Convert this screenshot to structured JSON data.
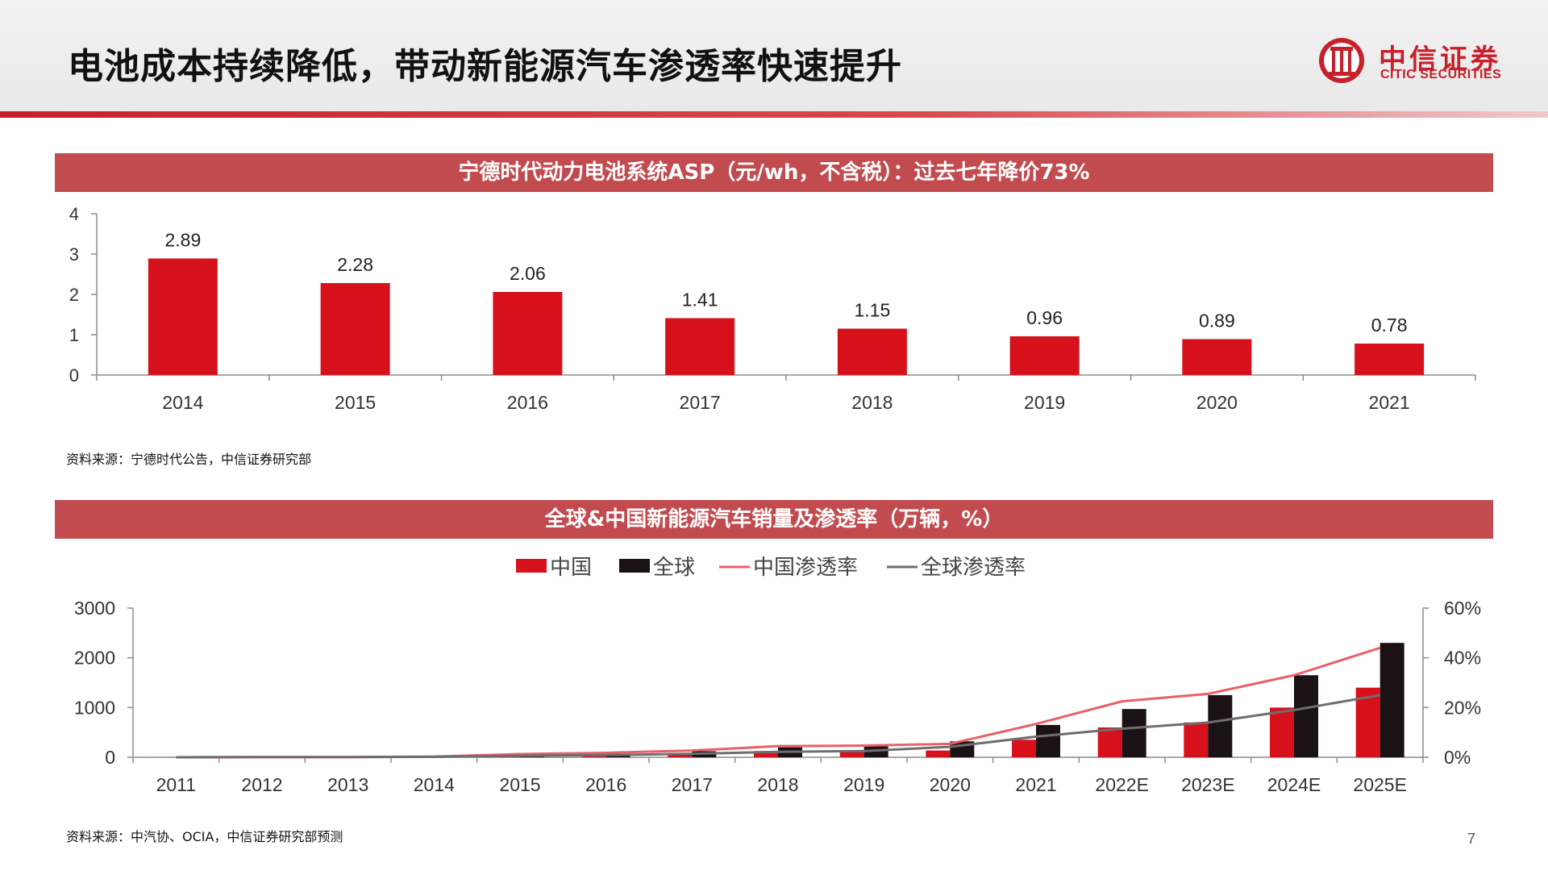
{
  "header": {
    "title": "电池成本持续降低，带动新能源汽车渗透率快速提升"
  },
  "logo": {
    "name_cn": "中信证券",
    "name_en": "CITIC SECURITIES",
    "brand_color": "#c8202a"
  },
  "section1": {
    "title": "宁德时代动力电池系统ASP（元/wh，不含税）：过去七年降价73%",
    "source": "资料来源：宁德时代公告，中信证券研究部"
  },
  "section2": {
    "title": "全球&中国新能源汽车销量及渗透率（万辆，%）",
    "source": "资料来源：中汽协、OCIA，中信证券研究部预测"
  },
  "page_number": "7",
  "chart_data": [
    {
      "type": "bar",
      "categories": [
        "2014",
        "2015",
        "2016",
        "2017",
        "2018",
        "2019",
        "2020",
        "2021"
      ],
      "values": [
        2.89,
        2.28,
        2.06,
        1.41,
        1.15,
        0.96,
        0.89,
        0.78
      ],
      "data_labels": [
        "2.89",
        "2.28",
        "2.06",
        "1.41",
        "1.15",
        "0.96",
        "0.89",
        "0.78"
      ],
      "ylim": [
        0,
        4
      ],
      "yticks": [
        "0",
        "1",
        "2",
        "3",
        "4"
      ],
      "grid": false,
      "color": "#d7111c"
    },
    {
      "type": "bar+line",
      "categories": [
        "2011",
        "2012",
        "2013",
        "2014",
        "2015",
        "2016",
        "2017",
        "2018",
        "2019",
        "2020",
        "2021",
        "2022E",
        "2023E",
        "2024E",
        "2025E"
      ],
      "legend_position": "top-center",
      "series": [
        {
          "name": "中国",
          "kind": "bar",
          "axis": "left",
          "color": "#d7111c",
          "values": [
            1,
            1,
            2,
            7,
            33,
            51,
            78,
            125,
            121,
            137,
            352,
            600,
            700,
            1000,
            1400
          ]
        },
        {
          "name": "全球",
          "kind": "bar",
          "axis": "left",
          "color": "#1a1214",
          "values": [
            5,
            12,
            20,
            32,
            55,
            75,
            122,
            200,
            220,
            320,
            650,
            970,
            1250,
            1650,
            2300
          ]
        },
        {
          "name": "中国渗透率",
          "kind": "line",
          "axis": "right",
          "color": "#e8606a",
          "values": [
            0.0,
            0.1,
            0.1,
            0.3,
            1.3,
            1.8,
            2.7,
            4.5,
            4.7,
            5.4,
            13.4,
            22.5,
            25.5,
            33.0,
            44.0
          ]
        },
        {
          "name": "全球渗透率",
          "kind": "line",
          "axis": "right",
          "color": "#6e6e6e",
          "values": [
            0.0,
            0.1,
            0.1,
            0.2,
            0.6,
            0.9,
            1.4,
            2.2,
            2.5,
            4.2,
            8.3,
            11.5,
            14.0,
            19.0,
            25.0
          ]
        }
      ],
      "ylim_left": [
        0,
        3000
      ],
      "yticks_left": [
        "0",
        "1000",
        "2000",
        "3000"
      ],
      "ylim_right": [
        0,
        60
      ],
      "yticks_right": [
        "0%",
        "20%",
        "40%",
        "60%"
      ],
      "grid": false
    }
  ]
}
